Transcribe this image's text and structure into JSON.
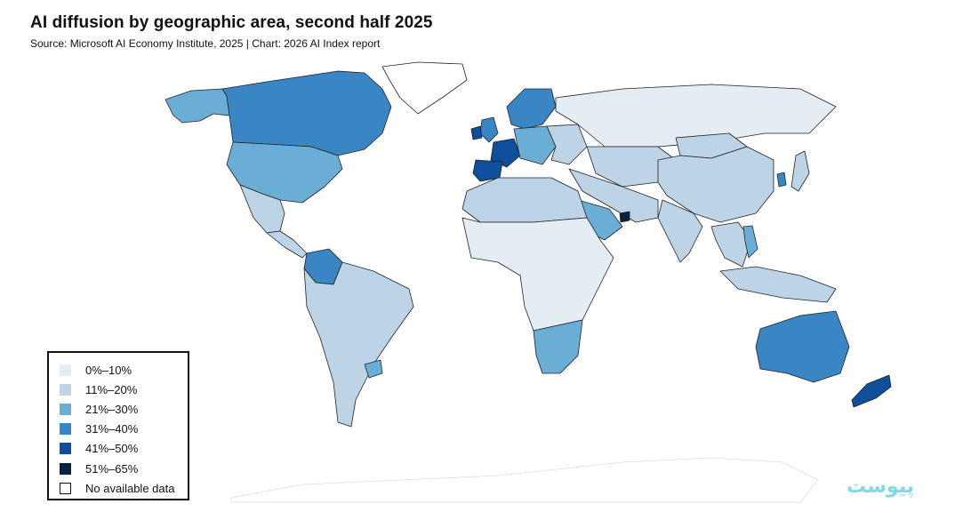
{
  "title": "AI diffusion by geographic area, second half 2025",
  "subtitle": "Source: Microsoft AI Economy Institute, 2025 | Chart: 2026 AI Index report",
  "legend": [
    {
      "label": "0%–10%",
      "color": "#e4edf4"
    },
    {
      "label": "11%–20%",
      "color": "#bdd4e7"
    },
    {
      "label": "21%–30%",
      "color": "#6aaed6"
    },
    {
      "label": "31%–40%",
      "color": "#3a85c3"
    },
    {
      "label": "41%–50%",
      "color": "#0d4f9a"
    },
    {
      "label": "51%–65%",
      "color": "#08233f"
    },
    {
      "label": "No available data",
      "color": "#ffffff"
    }
  ],
  "watermark": "پیوست",
  "regions": {
    "alaska": "21%–30%",
    "canada": "31%–40%",
    "usa": "21%–30%",
    "greenland": "No available data",
    "mexico": "11%–20%",
    "central-america": "11%–20%",
    "colombia": "31%–40%",
    "south-america": "11%–20%",
    "uruguay": "21%–30%",
    "spain": "41%–50%",
    "france": "41%–50%",
    "uk": "31%–40%",
    "ireland": "41%–50%",
    "scandinavia": "31%–40%",
    "central-europe": "21%–30%",
    "eastern-europe": "11%–20%",
    "russia": "0%–10%",
    "north-africa": "11%–20%",
    "sub-saharan-africa": "0%–10%",
    "southern-africa": "21%–30%",
    "saudi-arabia": "21%–30%",
    "uae": "51%–65%",
    "middle-east": "11%–20%",
    "central-asia": "11%–20%",
    "china": "11%–20%",
    "mongolia": "11%–20%",
    "india": "11%–20%",
    "south-korea": "31%–40%",
    "japan": "11%–20%",
    "southeast-asia": "11%–20%",
    "vietnam": "21%–30%",
    "indonesia": "11%–20%",
    "australia": "31%–40%",
    "new-zealand": "41%–50%",
    "antarctica": "No available data"
  }
}
